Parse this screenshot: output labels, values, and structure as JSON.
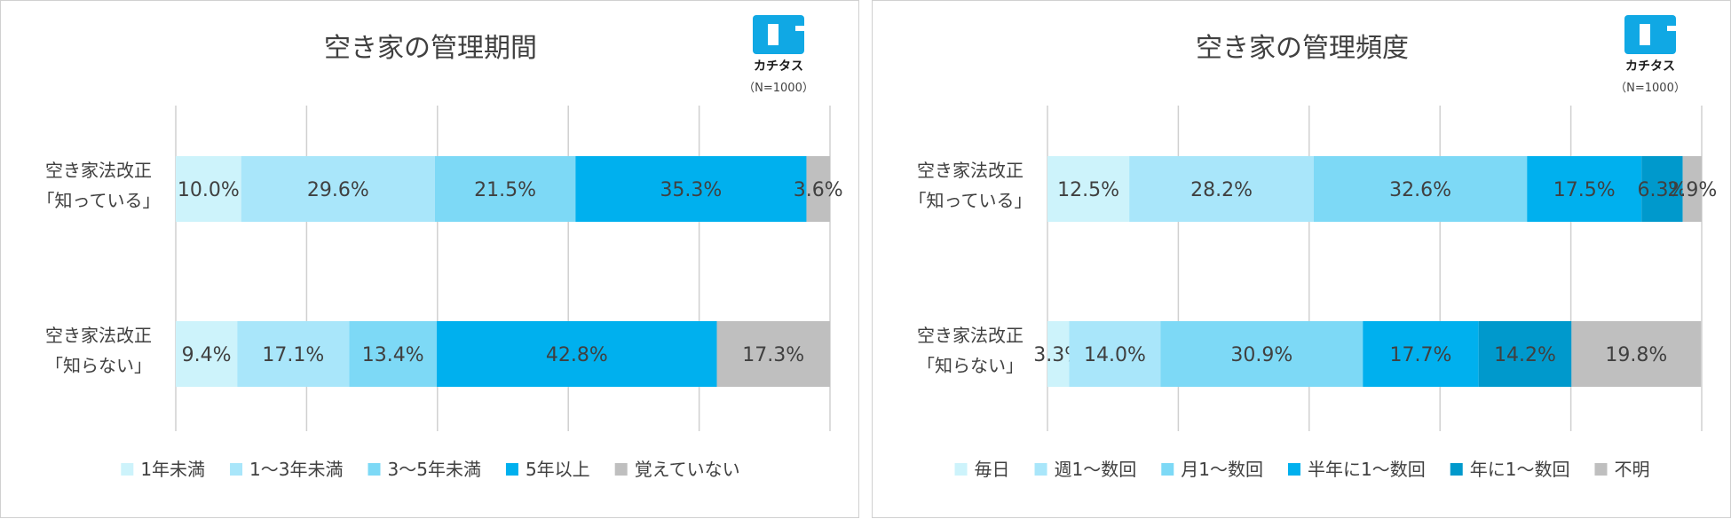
{
  "brand": {
    "name": "カチタス",
    "note": "（N=1000）"
  },
  "chart_data": [
    {
      "type": "bar",
      "orientation": "horizontal",
      "stacked": "percent",
      "title": "空き家の管理期間",
      "categories": [
        "空き家法改正「知っている」",
        "空き家法改正「知らない」"
      ],
      "category_lines": [
        [
          "空き家法改正",
          "「知っている」"
        ],
        [
          "空き家法改正",
          "「知らない」"
        ]
      ],
      "series": [
        {
          "name": "1年未満",
          "color": "#cdf3fb",
          "values": [
            10.0,
            9.4
          ]
        },
        {
          "name": "1～3年未満",
          "color": "#a9e6fa",
          "values": [
            29.6,
            17.1
          ]
        },
        {
          "name": "3～5年未満",
          "color": "#7dd9f6",
          "values": [
            21.5,
            13.4
          ]
        },
        {
          "name": "5年以上",
          "color": "#00b0ee",
          "values": [
            35.3,
            42.8
          ]
        },
        {
          "name": "覚えていない",
          "color": "#bfbfbf",
          "values": [
            3.6,
            17.3
          ]
        }
      ],
      "labels": [
        [
          "10.0%",
          "29.6%",
          "21.5%",
          "35.3%",
          "3.6%"
        ],
        [
          "9.4%",
          "17.1%",
          "13.4%",
          "42.8%",
          "17.3%"
        ]
      ],
      "xlim": [
        0,
        100
      ],
      "grid": true,
      "legend": "bottom"
    },
    {
      "type": "bar",
      "orientation": "horizontal",
      "stacked": "percent",
      "title": "空き家の管理頻度",
      "categories": [
        "空き家法改正「知っている」",
        "空き家法改正「知らない」"
      ],
      "category_lines": [
        [
          "空き家法改正",
          "「知っている」"
        ],
        [
          "空き家法改正",
          "「知らない」"
        ]
      ],
      "series": [
        {
          "name": "毎日",
          "color": "#cdf3fb",
          "values": [
            12.5,
            3.3
          ]
        },
        {
          "name": "週1～数回",
          "color": "#a9e6fa",
          "values": [
            28.2,
            14.0
          ]
        },
        {
          "name": "月1～数回",
          "color": "#7dd9f6",
          "values": [
            32.6,
            30.9
          ]
        },
        {
          "name": "半年に1～数回",
          "color": "#00b0ee",
          "values": [
            17.5,
            17.7
          ]
        },
        {
          "name": "年に1～数回",
          "color": "#0099cc",
          "values": [
            6.3,
            14.2
          ]
        },
        {
          "name": "不明",
          "color": "#bfbfbf",
          "values": [
            2.9,
            19.8
          ]
        }
      ],
      "labels": [
        [
          "12.5%",
          "28.2%",
          "32.6%",
          "17.5%",
          "6.3%",
          "2.9%"
        ],
        [
          "3.3%",
          "14.0%",
          "30.9%",
          "17.7%",
          "14.2%",
          "19.8%"
        ]
      ],
      "xlim": [
        0,
        100
      ],
      "grid": true,
      "legend": "bottom"
    }
  ]
}
